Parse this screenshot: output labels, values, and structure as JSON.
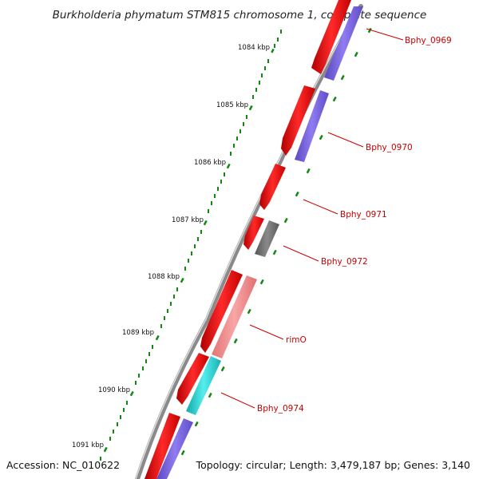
{
  "title": "Burkholderia phymatum STM815 chromosome 1, complete sequence",
  "accession": "Accession: NC_010622",
  "summary": "Topology: circular; Length: 3,479,187 bp; Genes: 3,140",
  "colors": {
    "backbone": "#8a8a8a",
    "cds_forward": "#ee1111",
    "cds_reverse": "#7a66dd",
    "rna": "#777777",
    "rrna_light": "#f08c8c",
    "cyan_feature": "#22cccc",
    "ticks": "#118811",
    "label": "#cc0000"
  },
  "kbp_ticks": [
    {
      "label": "1084 kbp"
    },
    {
      "label": "1085 kbp"
    },
    {
      "label": "1086 kbp"
    },
    {
      "label": "1087 kbp"
    },
    {
      "label": "1088 kbp"
    },
    {
      "label": "1089 kbp"
    },
    {
      "label": "1090 kbp"
    },
    {
      "label": "1091 kbp"
    }
  ],
  "gene_labels": [
    {
      "name": "Bphy_0969"
    },
    {
      "name": "Bphy_0970"
    },
    {
      "name": "Bphy_0971"
    },
    {
      "name": "Bphy_0972"
    },
    {
      "name": "rimO"
    },
    {
      "name": "Bphy_0974"
    }
  ]
}
